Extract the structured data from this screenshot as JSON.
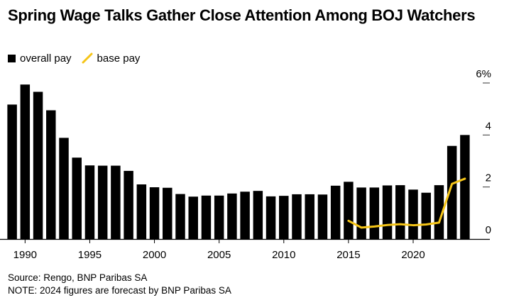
{
  "title": "Spring Wage Talks Gather Close Attention Among BOJ Watchers",
  "legend": {
    "items": [
      {
        "label": "overall pay",
        "color": "#000000",
        "icon": "square"
      },
      {
        "label": "base pay",
        "color": "#f5c518",
        "icon": "line"
      }
    ]
  },
  "footer": {
    "source": "Source: Rengo, BNP Paribas SA",
    "note": "NOTE: 2024 figures are forecast by BNP Paribas SA"
  },
  "chart_data": {
    "type": "bar",
    "x": [
      1989,
      1990,
      1991,
      1992,
      1993,
      1994,
      1995,
      1996,
      1997,
      1998,
      1999,
      2000,
      2001,
      2002,
      2003,
      2004,
      2005,
      2006,
      2007,
      2008,
      2009,
      2010,
      2011,
      2012,
      2013,
      2014,
      2015,
      2016,
      2017,
      2018,
      2019,
      2020,
      2021,
      2022,
      2023,
      2024
    ],
    "series": [
      {
        "name": "overall pay",
        "type": "bar",
        "color": "#000000",
        "values": [
          5.17,
          5.94,
          5.66,
          4.95,
          3.89,
          3.13,
          2.83,
          2.82,
          2.82,
          2.62,
          2.1,
          1.99,
          1.97,
          1.73,
          1.63,
          1.67,
          1.67,
          1.75,
          1.82,
          1.85,
          1.64,
          1.66,
          1.72,
          1.72,
          1.71,
          2.05,
          2.2,
          1.98,
          1.98,
          2.06,
          2.07,
          1.9,
          1.78,
          2.07,
          3.58,
          4.0
        ]
      },
      {
        "name": "base pay",
        "type": "line",
        "color": "#f5c518",
        "x": [
          2015,
          2016,
          2017,
          2018,
          2019,
          2020,
          2021,
          2022,
          2023,
          2024
        ],
        "values": [
          0.7,
          0.44,
          0.48,
          0.54,
          0.57,
          0.53,
          0.56,
          0.63,
          2.12,
          2.32
        ]
      }
    ],
    "xticks": [
      "1990",
      "1995",
      "2000",
      "2005",
      "2010",
      "2015",
      "2020"
    ],
    "xtick_values": [
      1990,
      1995,
      2000,
      2005,
      2010,
      2015,
      2020
    ],
    "yticks": [
      "0",
      "2",
      "4",
      "6%"
    ],
    "ytick_values": [
      0,
      2,
      4,
      6
    ],
    "ylim": [
      0,
      6
    ],
    "xlabel": "",
    "ylabel": "",
    "y_axis_position": "right",
    "grid": false,
    "legend_position": "top-left"
  }
}
